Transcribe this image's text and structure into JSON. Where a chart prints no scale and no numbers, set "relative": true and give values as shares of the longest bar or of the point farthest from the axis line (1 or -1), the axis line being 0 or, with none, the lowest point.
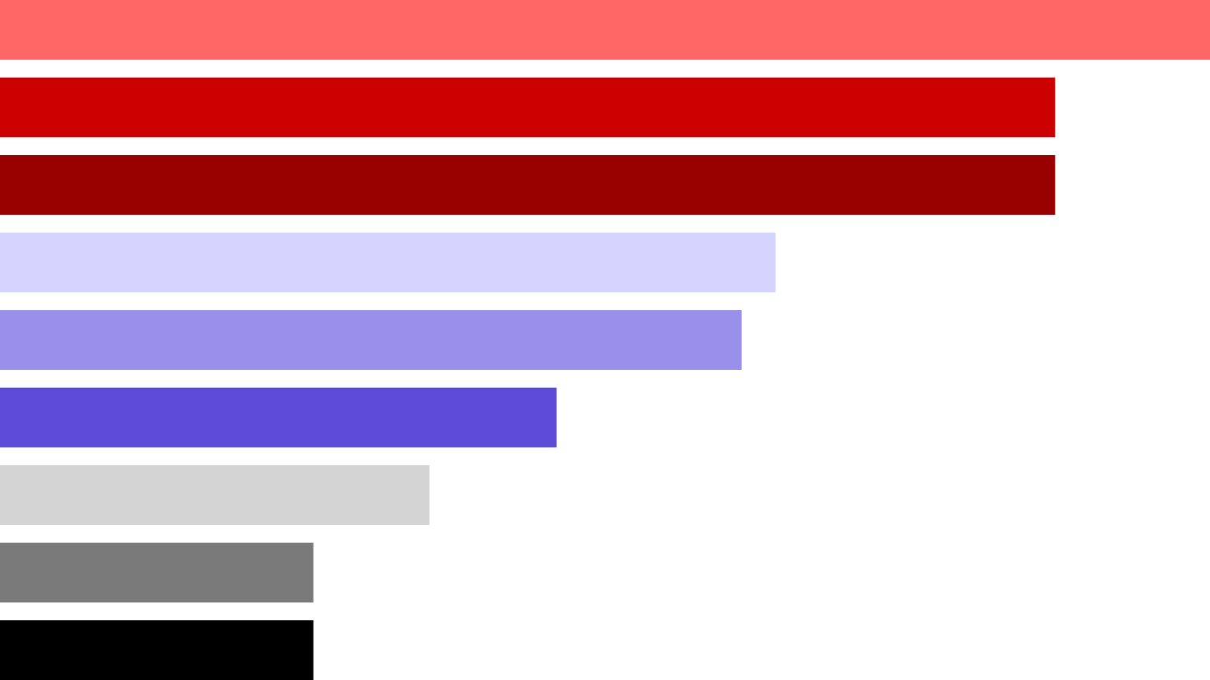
{
  "chart_data": {
    "type": "bar",
    "orientation": "horizontal",
    "relative": true,
    "categories": [
      null,
      null,
      null,
      null,
      null,
      null,
      null,
      null,
      null
    ],
    "values": [
      1,
      0.872,
      0.872,
      0.641,
      0.613,
      0.46,
      0.355,
      0.259,
      0.259
    ],
    "colors": [
      "#ff6666",
      "#cc0000",
      "#990000",
      "#d4d4ff",
      "#9890eb",
      "#5c4bd6",
      "#d4d4d4",
      "#7a7a7a",
      "#000000"
    ]
  }
}
